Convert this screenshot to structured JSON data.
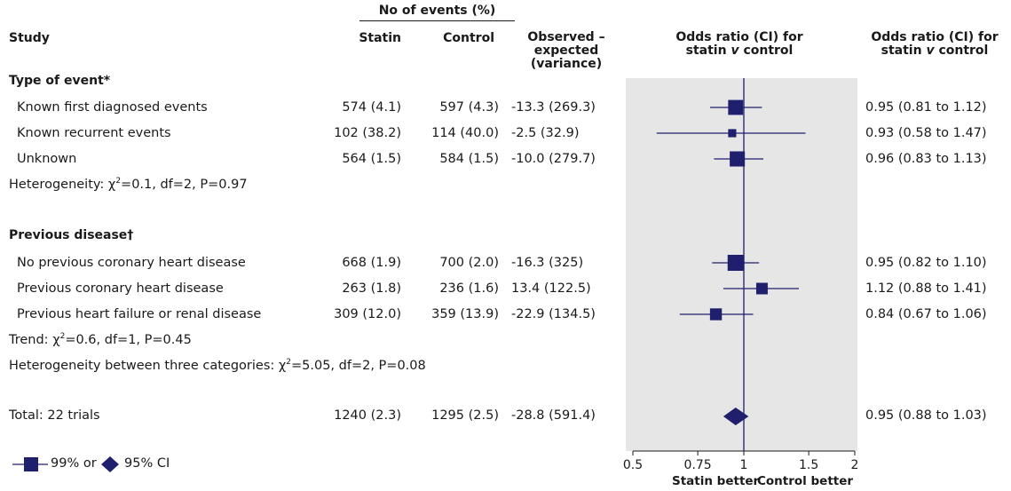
{
  "header": {
    "study": "Study",
    "events_group": "No of events (%)",
    "statin": "Statin",
    "control": "Control",
    "oe_line1": "Observed –",
    "oe_line2": "expected",
    "oe_line3": "(variance)",
    "or_line1": "Odds ratio (CI) for",
    "or_line2_pre": "statin ",
    "or_line2_v": "v",
    "or_line2_post": " control"
  },
  "sections": {
    "type_of_event": "Type of event*",
    "previous_disease": "Previous disease†"
  },
  "rows": [
    {
      "label": "Known first diagnosed events",
      "statin": "574 (4.1)",
      "control": "597 (4.3)",
      "oe": "-13.3 (269.3)",
      "or_text": "0.95 (0.81 to 1.12)"
    },
    {
      "label": "Known recurrent events",
      "statin": "102 (38.2)",
      "control": "114 (40.0)",
      "oe": "-2.5 (32.9)",
      "or_text": "0.93 (0.58 to 1.47)"
    },
    {
      "label": "Unknown",
      "statin": "564 (1.5)",
      "control": "584 (1.5)",
      "oe": "-10.0 (279.7)",
      "or_text": "0.96 (0.83 to 1.13)"
    },
    {
      "label": "No previous coronary heart disease",
      "statin": "668 (1.9)",
      "control": "700 (2.0)",
      "oe": "-16.3 (325)",
      "or_text": "0.95 (0.82 to 1.10)"
    },
    {
      "label": "Previous coronary heart disease",
      "statin": "263 (1.8)",
      "control": "236 (1.6)",
      "oe": "13.4 (122.5)",
      "or_text": "1.12 (0.88 to 1.41)"
    },
    {
      "label": "Previous heart failure or renal disease",
      "statin": "309 (12.0)",
      "control": "359 (13.9)",
      "oe": "-22.9 (134.5)",
      "or_text": "0.84 (0.67 to 1.06)"
    }
  ],
  "notes": {
    "het1_pre": "Heterogeneity: ",
    "het1_post": "=0.1, df=2, P=0.97",
    "trend_pre": "Trend: ",
    "trend_post": "=0.6, df=1, P=0.45",
    "het3_pre": "Heterogeneity between three categories: ",
    "het3_post": "=5.05, df=2, P=0.08",
    "chi": "χ",
    "sq": "2"
  },
  "total": {
    "label": "Total: 22 trials",
    "statin": "1240 (2.3)",
    "control": "1295 (2.5)",
    "oe": "-28.8 (591.4)",
    "or_text": "0.95 (0.88 to 1.03)"
  },
  "legend": {
    "square_label": "99% or",
    "diamond_label": "95% CI"
  },
  "axis_labels": {
    "left": "Statin better",
    "right": "Control better"
  },
  "colors": {
    "marker": "#1f1f6e",
    "panel_bg": "#e6e6e6"
  },
  "chart_data": {
    "type": "forest",
    "x_scale": "log",
    "xlim": [
      0.5,
      2
    ],
    "x_ticks": [
      0.5,
      0.75,
      1,
      1.5,
      2
    ],
    "x_tick_labels": [
      "0.5",
      "0.75",
      "1",
      "1.5",
      "2"
    ],
    "reference_line": 1,
    "series": [
      {
        "or": 0.95,
        "lo": 0.81,
        "hi": 1.12,
        "weight": 269.3,
        "shape": "square"
      },
      {
        "or": 0.93,
        "lo": 0.58,
        "hi": 1.47,
        "weight": 32.9,
        "shape": "square"
      },
      {
        "or": 0.96,
        "lo": 0.83,
        "hi": 1.13,
        "weight": 279.7,
        "shape": "square"
      },
      {
        "or": 0.95,
        "lo": 0.82,
        "hi": 1.1,
        "weight": 325,
        "shape": "square"
      },
      {
        "or": 1.12,
        "lo": 0.88,
        "hi": 1.41,
        "weight": 122.5,
        "shape": "square"
      },
      {
        "or": 0.84,
        "lo": 0.67,
        "hi": 1.06,
        "weight": 134.5,
        "shape": "square"
      },
      {
        "or": 0.95,
        "lo": 0.88,
        "hi": 1.03,
        "weight": 591.4,
        "shape": "diamond"
      }
    ]
  }
}
